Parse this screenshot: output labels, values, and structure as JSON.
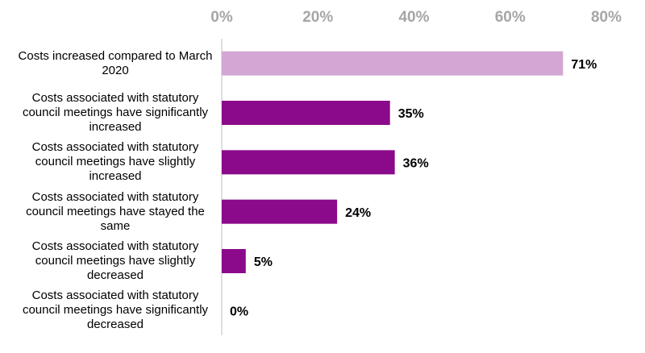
{
  "chart_data": {
    "type": "bar",
    "orientation": "horizontal",
    "categories": [
      "Costs increased compared to March 2020",
      "Costs associated with statutory council meetings have significantly increased",
      "Costs associated with statutory council meetings have slightly increased",
      "Costs associated with statutory council meetings have stayed the same",
      "Costs associated with statutory council meetings have slightly decreased",
      "Costs associated with statutory council meetings have significantly decreased"
    ],
    "values": [
      71,
      35,
      36,
      24,
      5,
      0
    ],
    "value_labels": [
      "71%",
      "35%",
      "36%",
      "24%",
      "5%",
      "0%"
    ],
    "colors": [
      "#d4a6d4",
      "#8b0a8b",
      "#8b0a8b",
      "#8b0a8b",
      "#8b0a8b",
      "#8b0a8b"
    ],
    "xlim": [
      0,
      80
    ],
    "xticks": [
      {
        "value": 0,
        "label": "0%"
      },
      {
        "value": 20,
        "label": "20%"
      },
      {
        "value": 40,
        "label": "40%"
      },
      {
        "value": 60,
        "label": "60%"
      },
      {
        "value": 80,
        "label": "80%"
      }
    ]
  }
}
